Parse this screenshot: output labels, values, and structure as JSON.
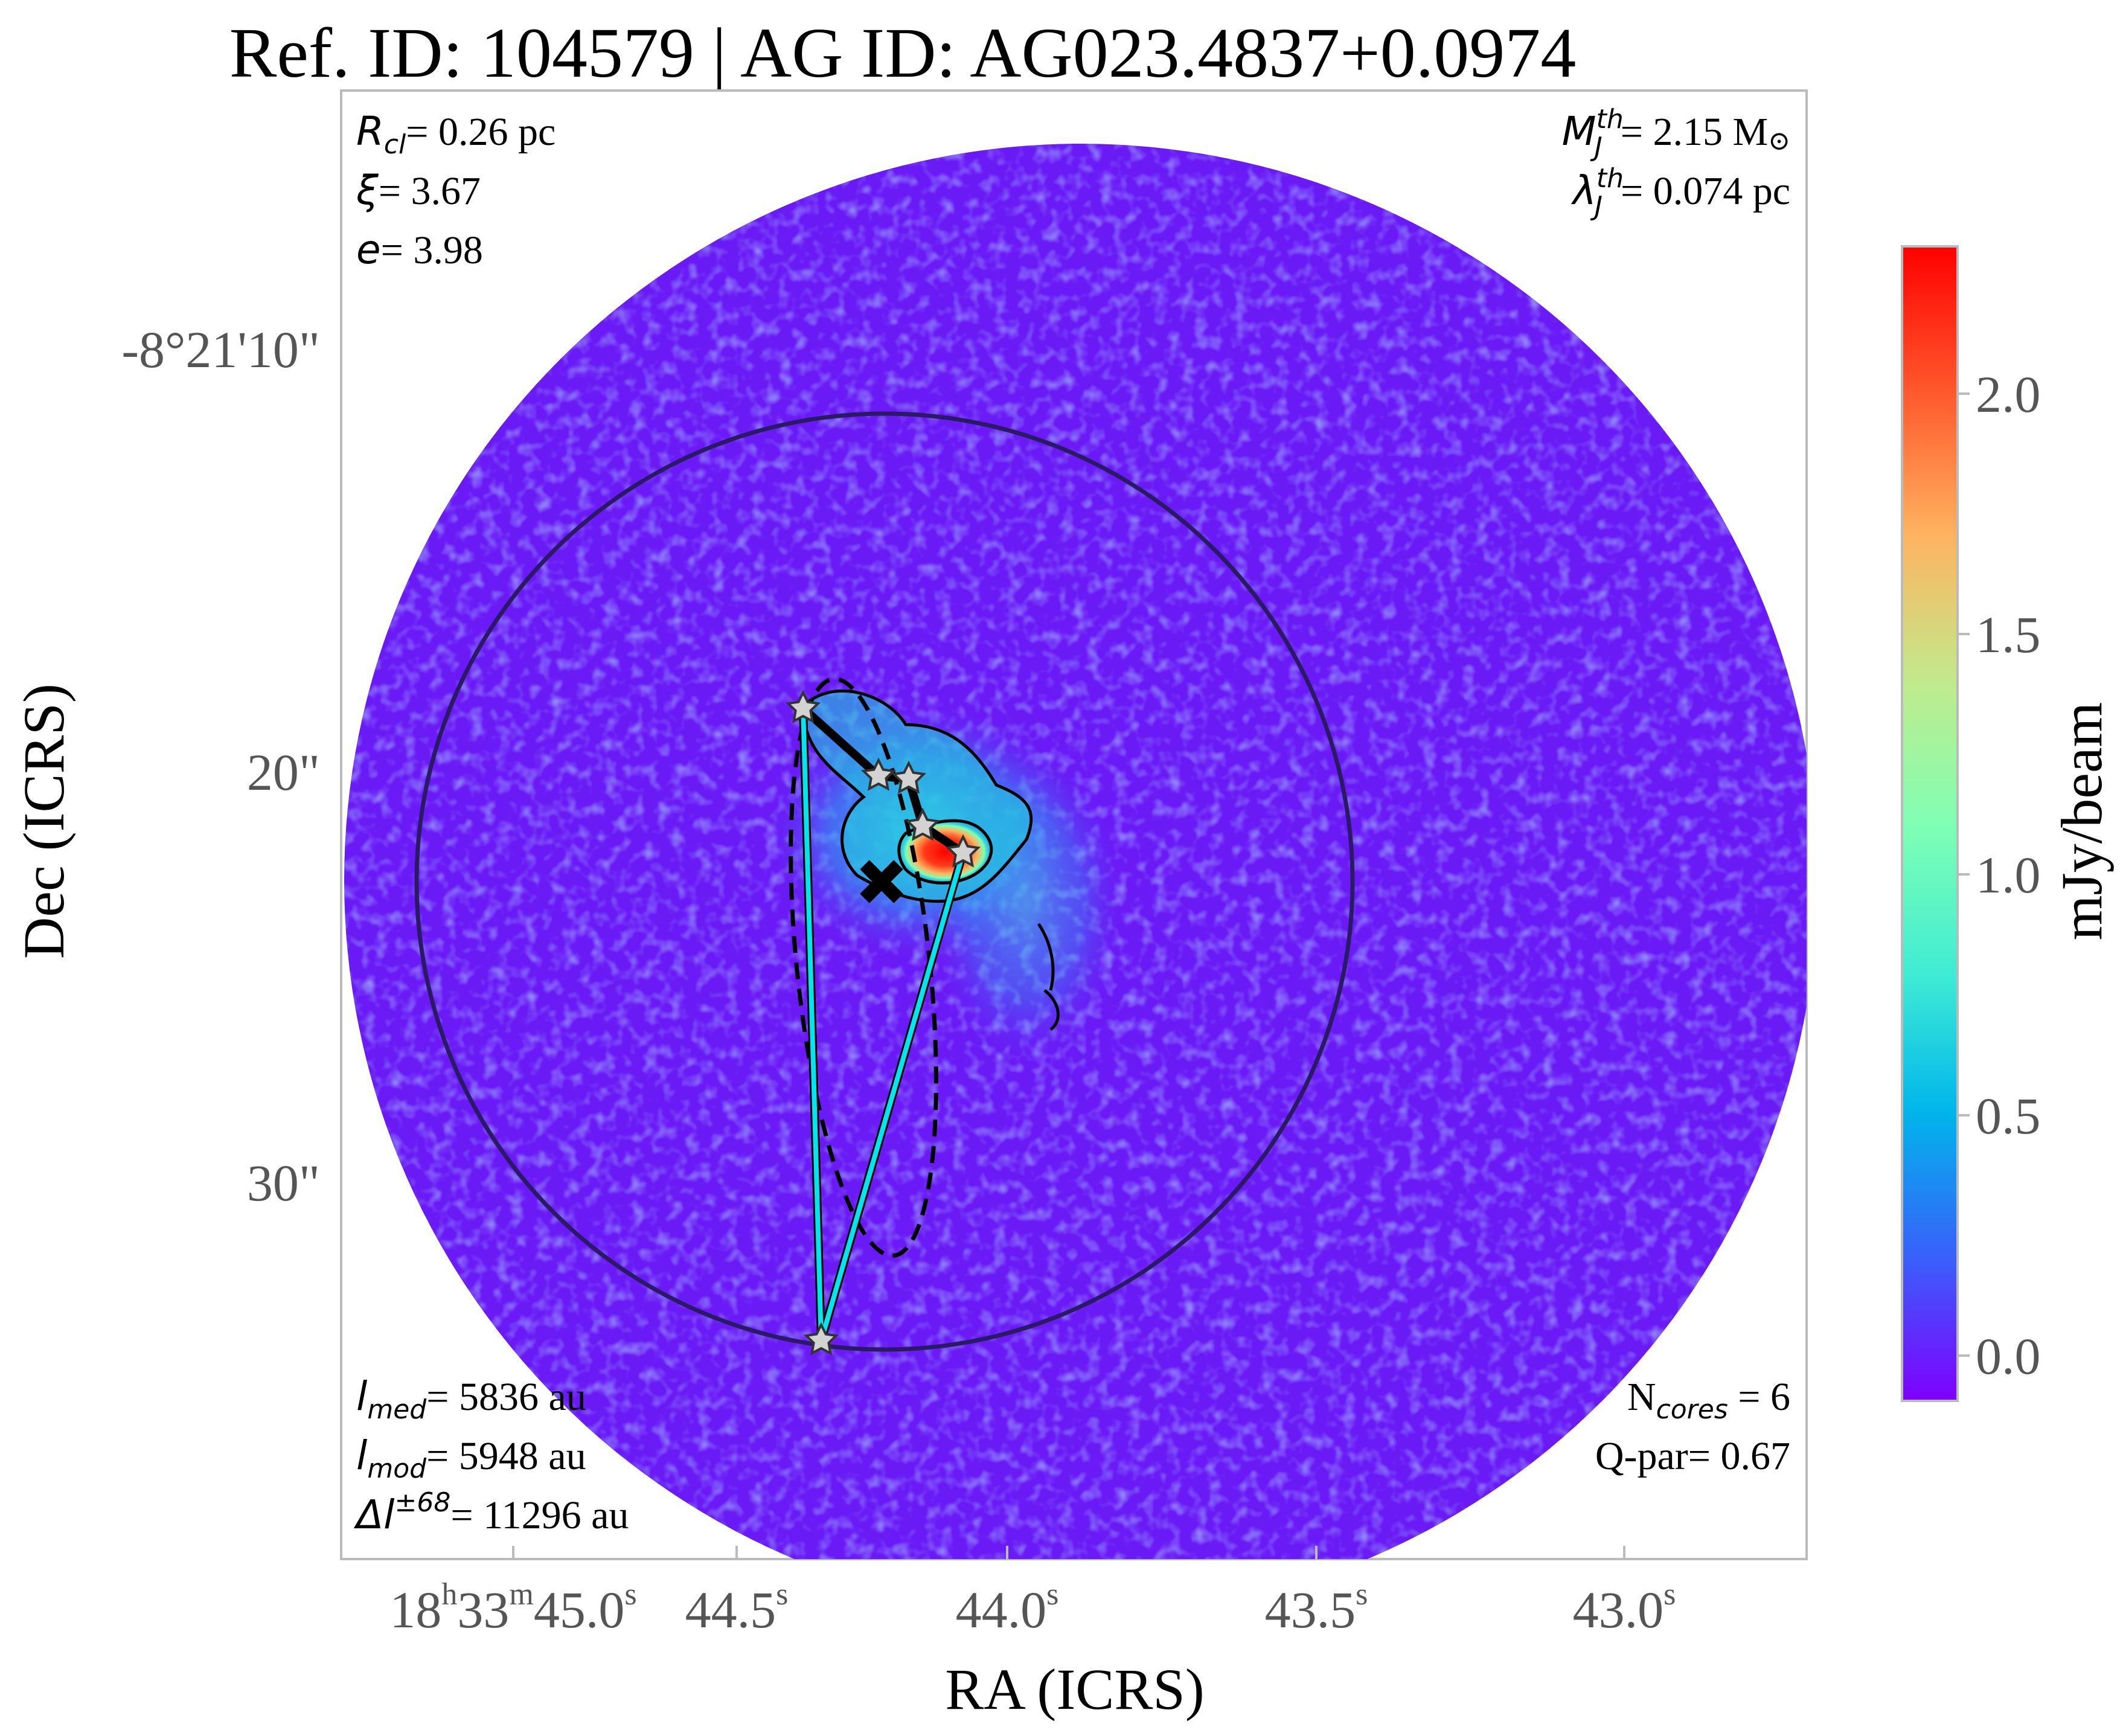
{
  "title": "Ref. ID: 104579 | AG ID: AG023.4837+0.0974",
  "axes": {
    "xlabel": "RA (ICRS)",
    "ylabel": "Dec (ICRS)",
    "x_ticks": [
      {
        "h": "18",
        "m": "33",
        "s": "45.0"
      },
      {
        "s": "44.5"
      },
      {
        "s": "44.0"
      },
      {
        "s": "43.5"
      },
      {
        "s": "43.0"
      }
    ],
    "y_ticks": [
      "-8°21'10\"",
      "20\"",
      "30\""
    ]
  },
  "colorbar": {
    "label": "mJy/beam",
    "ticks": [
      "0.0",
      "0.5",
      "1.0",
      "1.5",
      "2.0"
    ],
    "range": [
      -0.1,
      2.3
    ],
    "colormap": [
      "#7f00ff",
      "#3b5dfb",
      "#00b5eb",
      "#40ecd4",
      "#80ffb4",
      "#c0eb8d",
      "#ffb360",
      "#ff5b2e",
      "#ff0000"
    ]
  },
  "annotations": {
    "top_left": [
      {
        "sym": "R",
        "sub": "cl",
        "text": "= 0.26 pc"
      },
      {
        "sym": "ξ",
        "text": "= 3.67"
      },
      {
        "sym": "e",
        "text": "= 3.98"
      }
    ],
    "top_right": [
      {
        "sym": "M",
        "sup": "th",
        "sub": "J",
        "text": "= 2.15 M",
        "tail": "⊙"
      },
      {
        "sym": "λ",
        "sup": "th",
        "sub": "J",
        "text": "= 0.074 pc"
      }
    ],
    "bottom_left": [
      {
        "sym": "l",
        "sub": "med",
        "text": "= 5836 au"
      },
      {
        "sym": "l",
        "sub": "mod",
        "text": "= 5948 au"
      },
      {
        "sym": "Δl",
        "sup": "±68",
        "text": "= 11296 au"
      }
    ],
    "bottom_right": [
      {
        "pre": "N",
        "sub": "cores",
        "text": " = 6"
      },
      {
        "text": "Q-par= 0.67"
      }
    ]
  },
  "colors": {
    "background_map": "#5a3cf5",
    "outer_disk_edge": "#7f00ff",
    "cluster_circle": "#2a1a66",
    "mst_edges": "#00e5ee",
    "ellipse": "#000000",
    "cores": "#d3d3d3",
    "centroid": "#000000"
  },
  "icons": [
    "star-marker",
    "x-marker"
  ]
}
